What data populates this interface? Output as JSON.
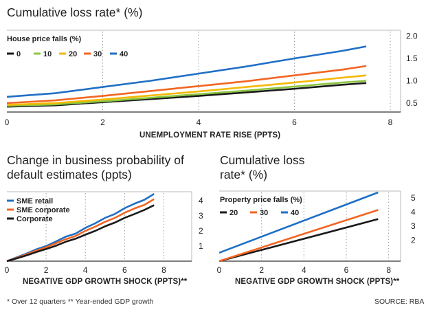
{
  "chart_data": [
    {
      "type": "line",
      "title": "Cumulative loss rate* (%)",
      "xlabel": "UNEMPLOYMENT RATE RISE (PPTS)",
      "ylabel": "",
      "xlim": [
        0,
        8
      ],
      "ylim": [
        0.3,
        2.1
      ],
      "x_ticks": [
        "0",
        "2",
        "4",
        "6",
        "8"
      ],
      "y_ticks": [
        "0.5",
        "1.0",
        "1.5",
        "2.0"
      ],
      "y_axis_side": "right",
      "legend_title": "House price falls (%)",
      "legend_placement": "top-left",
      "series": [
        {
          "name": "0",
          "color": "#1a1a1a",
          "x": [
            0,
            1,
            2,
            3,
            4,
            5,
            6,
            7,
            7.5
          ],
          "y": [
            0.42,
            0.45,
            0.52,
            0.59,
            0.66,
            0.74,
            0.82,
            0.91,
            0.95
          ]
        },
        {
          "name": "10",
          "color": "#8cc63f",
          "x": [
            0,
            1,
            2,
            3,
            4,
            5,
            6,
            7,
            7.5
          ],
          "y": [
            0.44,
            0.47,
            0.54,
            0.62,
            0.7,
            0.78,
            0.87,
            0.96,
            1.0
          ]
        },
        {
          "name": "20",
          "color": "#f5b800",
          "x": [
            0,
            1,
            2,
            3,
            4,
            5,
            6,
            7,
            7.5
          ],
          "y": [
            0.46,
            0.5,
            0.58,
            0.67,
            0.76,
            0.86,
            0.96,
            1.07,
            1.12
          ]
        },
        {
          "name": "30",
          "color": "#f26522",
          "x": [
            0,
            1,
            2,
            3,
            4,
            5,
            6,
            7,
            7.5
          ],
          "y": [
            0.5,
            0.56,
            0.66,
            0.77,
            0.88,
            0.99,
            1.12,
            1.25,
            1.33
          ]
        },
        {
          "name": "40",
          "color": "#1f6fc5",
          "x": [
            0,
            1,
            2,
            3,
            4,
            5,
            6,
            7,
            7.5
          ],
          "y": [
            0.64,
            0.72,
            0.86,
            1.0,
            1.16,
            1.32,
            1.5,
            1.67,
            1.77
          ]
        }
      ]
    },
    {
      "type": "line",
      "title": "Change in business probability of default estimates (ppts)",
      "xlabel": "NEGATIVE GDP GROWTH SHOCK (PPTS)**",
      "ylabel": "",
      "xlim": [
        0,
        9
      ],
      "ylim": [
        0,
        4.5
      ],
      "x_ticks": [
        "0",
        "2",
        "4",
        "6",
        "8"
      ],
      "y_ticks": [
        "1",
        "2",
        "3",
        "4"
      ],
      "y_axis_side": "right",
      "legend_placement": "top-left",
      "series": [
        {
          "name": "SME retail",
          "color": "#1f6fc5",
          "x": [
            0,
            0.5,
            1,
            1.5,
            2,
            2.5,
            3,
            3.5,
            4,
            4.5,
            5,
            5.5,
            6,
            6.5,
            7,
            7.5
          ],
          "y": [
            0,
            0.25,
            0.5,
            0.78,
            1.0,
            1.3,
            1.62,
            1.82,
            2.2,
            2.5,
            2.86,
            3.12,
            3.5,
            3.8,
            4.05,
            4.45
          ]
        },
        {
          "name": "SME corporate",
          "color": "#f26522",
          "x": [
            0,
            0.5,
            1,
            1.5,
            2,
            2.5,
            3,
            3.5,
            4,
            4.5,
            5,
            5.5,
            6,
            6.5,
            7,
            7.5
          ],
          "y": [
            0,
            0.22,
            0.45,
            0.7,
            0.92,
            1.18,
            1.45,
            1.66,
            2.0,
            2.28,
            2.6,
            2.86,
            3.2,
            3.48,
            3.72,
            4.1
          ]
        },
        {
          "name": "Corporate",
          "color": "#1a1a1a",
          "x": [
            0,
            0.5,
            1,
            1.5,
            2,
            2.5,
            3,
            3.5,
            4,
            4.5,
            5,
            5.5,
            6,
            6.5,
            7,
            7.5
          ],
          "y": [
            0,
            0.18,
            0.38,
            0.6,
            0.8,
            1.02,
            1.28,
            1.48,
            1.75,
            2.0,
            2.3,
            2.55,
            2.86,
            3.12,
            3.38,
            3.7
          ]
        }
      ]
    },
    {
      "type": "line",
      "title": "Cumulative loss rate* (%)",
      "xlabel": "NEGATIVE GDP GROWTH SHOCK (PPTS)**",
      "ylabel": "",
      "xlim": [
        0,
        8.4
      ],
      "ylim": [
        0.5,
        5.4
      ],
      "x_ticks": [
        "0",
        "2",
        "4",
        "6",
        "8"
      ],
      "y_ticks": [
        "2",
        "3",
        "4",
        "5"
      ],
      "y_axis_side": "right",
      "legend_title": "Property price falls (%)",
      "legend_placement": "top-left",
      "series": [
        {
          "name": "20",
          "color": "#1a1a1a",
          "x": [
            0,
            7.5
          ],
          "y": [
            0.5,
            3.5
          ]
        },
        {
          "name": "30",
          "color": "#f26522",
          "x": [
            0,
            7.5
          ],
          "y": [
            0.5,
            4.15
          ]
        },
        {
          "name": "40",
          "color": "#1f6fc5",
          "x": [
            0,
            7.5
          ],
          "y": [
            1.1,
            5.4
          ]
        }
      ]
    }
  ],
  "texts": {
    "title_top": "Cumulative loss rate* (%)",
    "title_bl_line1": "Change in business probability of",
    "title_bl_line2": "default estimates (ppts)",
    "title_br_line1": "Cumulative loss",
    "title_br_line2": "rate* (%)",
    "xlabel_top": "UNEMPLOYMENT RATE RISE (PPTS)",
    "xlabel_bl": "NEGATIVE GDP GROWTH SHOCK (PPTS)**",
    "xlabel_br": "NEGATIVE GDP GROWTH SHOCK (PPTS)**",
    "footnote": "* Over 12 quarters ** Year-ended GDP growth",
    "source": "SOURCE: RBA"
  },
  "colors": {
    "black": "#1a1a1a",
    "green": "#8cc63f",
    "yellow": "#f5b800",
    "orange": "#f26522",
    "blue": "#1f6fc5",
    "grid": "#9a9a9a",
    "frame": "#b8b8b8"
  }
}
